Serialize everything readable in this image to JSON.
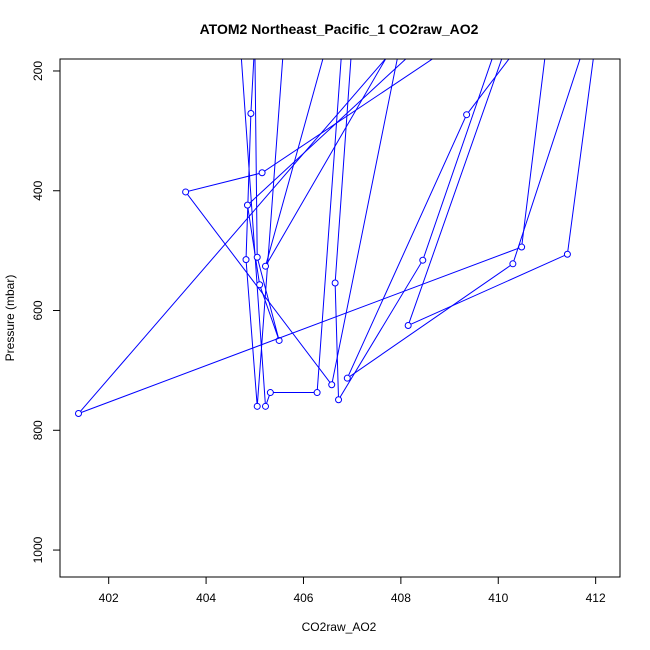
{
  "chart_data": {
    "type": "line",
    "title": "ATOM2 Northeast_Pacific_1 CO2raw_AO2",
    "xlabel": "CO2raw_AO2",
    "ylabel": "Pressure (mbar)",
    "xlim": [
      401,
      412.5
    ],
    "ylim": [
      1045,
      180
    ],
    "y_reversed": true,
    "xticks": [
      402,
      404,
      406,
      408,
      410,
      412
    ],
    "yticks": [
      200,
      400,
      600,
      800,
      1000
    ],
    "grid": false,
    "legend": "none",
    "line_color": "#0000ff",
    "series": [
      {
        "points": [
          [
            404.7,
            150
          ],
          [
            405.22,
            760
          ],
          [
            405.32,
            737
          ],
          [
            406.28,
            737
          ],
          [
            406.8,
            150
          ]
        ]
      },
      {
        "points": [
          [
            405.0,
            150
          ],
          [
            404.92,
            271
          ],
          [
            404.82,
            515
          ],
          [
            405.05,
            760
          ],
          [
            405.6,
            150
          ]
        ]
      },
      {
        "points": [
          [
            409.2,
            150
          ],
          [
            405.15,
            370
          ],
          [
            403.58,
            402
          ],
          [
            406.58,
            724
          ],
          [
            408.0,
            150
          ]
        ]
      },
      {
        "points": [
          [
            408.5,
            150
          ],
          [
            404.85,
            424
          ],
          [
            405.1,
            557
          ],
          [
            405.5,
            650
          ],
          [
            405.05,
            511
          ],
          [
            405.0,
            150
          ]
        ]
      },
      {
        "points": [
          [
            406.5,
            150
          ],
          [
            405.22,
            526
          ],
          [
            407.9,
            150
          ]
        ]
      },
      {
        "points": [
          [
            408.0,
            150
          ],
          [
            401.38,
            772
          ],
          [
            410.48,
            494
          ],
          [
            411.0,
            150
          ]
        ]
      },
      {
        "points": [
          [
            410.5,
            150
          ],
          [
            409.35,
            273
          ],
          [
            406.9,
            713
          ],
          [
            410.3,
            522
          ],
          [
            411.8,
            150
          ]
        ]
      },
      {
        "points": [
          [
            407.0,
            150
          ],
          [
            406.65,
            554
          ],
          [
            406.72,
            749
          ],
          [
            408.45,
            516
          ],
          [
            410.0,
            150
          ]
        ]
      },
      {
        "points": [
          [
            412.0,
            150
          ],
          [
            411.42,
            506
          ],
          [
            408.15,
            625
          ],
          [
            410.2,
            150
          ]
        ]
      }
    ]
  }
}
